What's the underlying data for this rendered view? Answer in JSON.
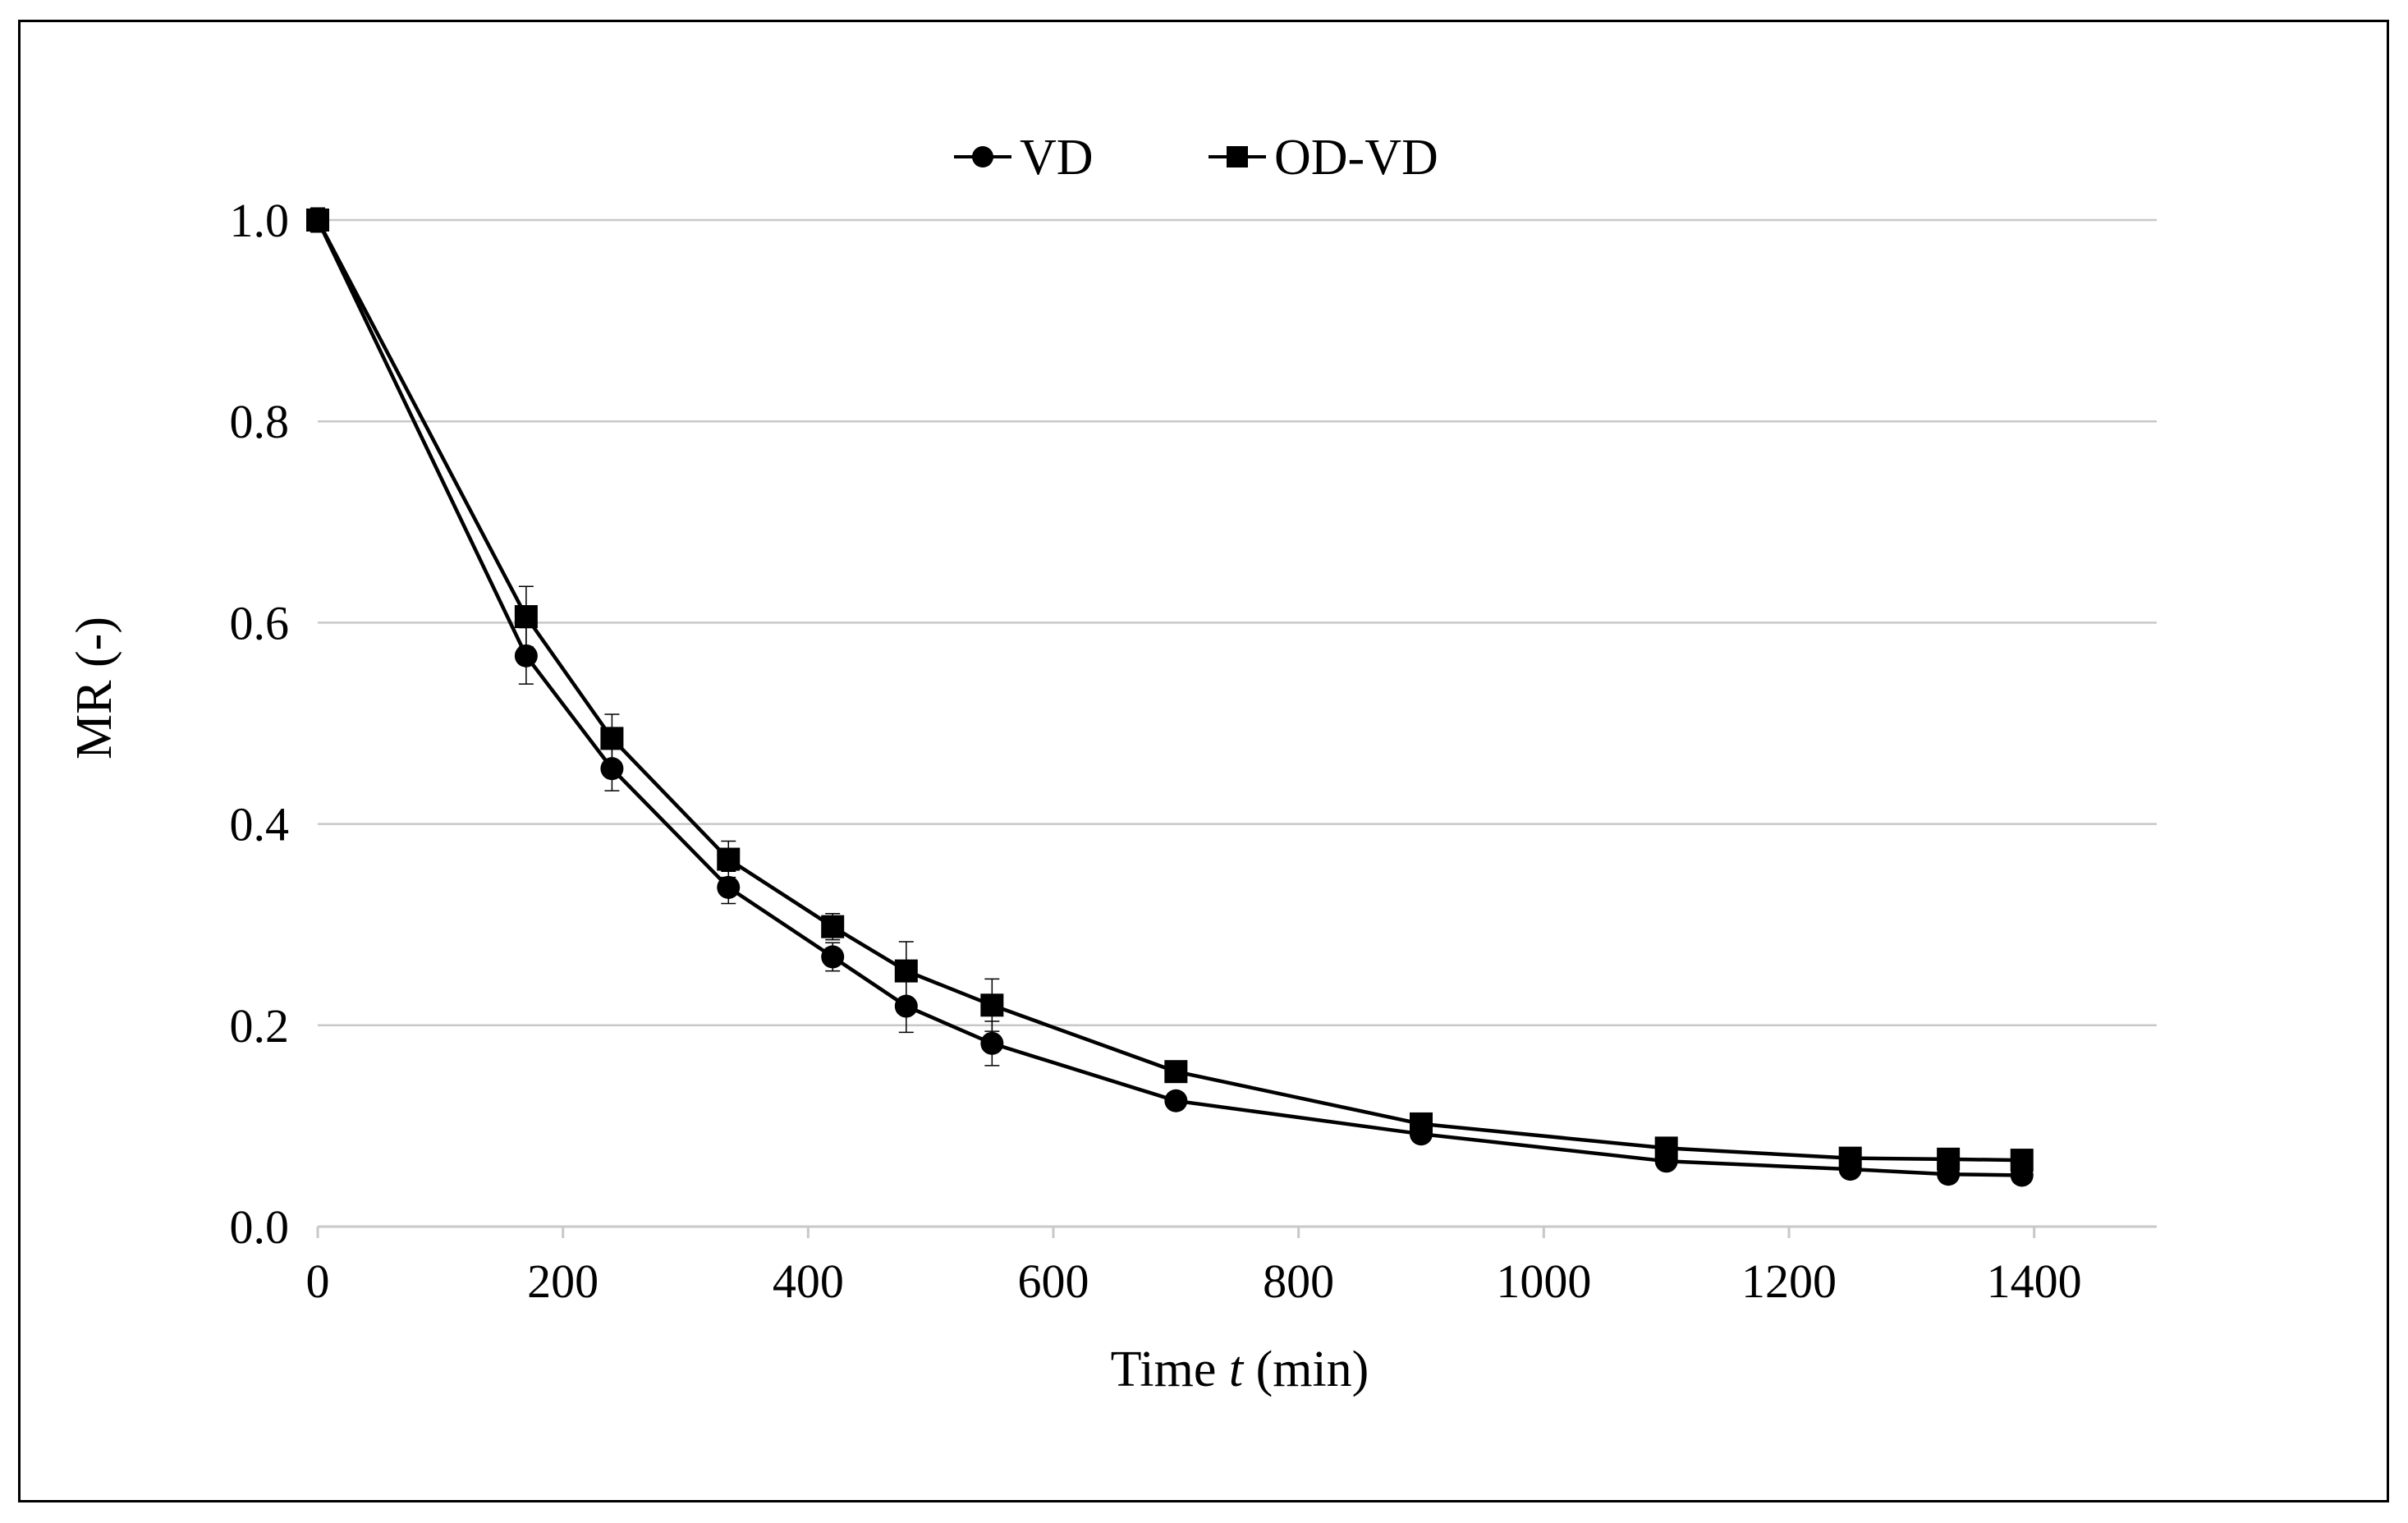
{
  "chart_data": {
    "type": "line",
    "title": "",
    "xlabel": {
      "prefix": "Time ",
      "italic": "t",
      "suffix": " (min)"
    },
    "ylabel": "MR (-)",
    "xlim": [
      0,
      1500
    ],
    "ylim": [
      0,
      1.0
    ],
    "xticks": [
      0,
      200,
      400,
      600,
      800,
      1000,
      1200,
      1400
    ],
    "yticks": [
      0.0,
      0.2,
      0.4,
      0.6,
      0.8,
      1.0
    ],
    "ytick_labels": [
      "0.0",
      "0.2",
      "0.4",
      "0.6",
      "0.8",
      "1.0"
    ],
    "grid": "horizontal",
    "legend_position": "top-center",
    "series": [
      {
        "name": "VD",
        "marker": "circle",
        "color": "#000000",
        "x": [
          0,
          170,
          240,
          335,
          420,
          480,
          550,
          700,
          900,
          1100,
          1250,
          1330,
          1390
        ],
        "y": [
          1.0,
          0.567,
          0.455,
          0.337,
          0.268,
          0.219,
          0.182,
          0.125,
          0.092,
          0.065,
          0.057,
          0.052,
          0.051
        ],
        "err": [
          0.012,
          0.028,
          0.022,
          0.016,
          0.014,
          0.026,
          0.022,
          0.008,
          0.006,
          0.005,
          0.004,
          0.004,
          0.004
        ]
      },
      {
        "name": "OD-VD",
        "marker": "square",
        "color": "#000000",
        "x": [
          0,
          170,
          240,
          335,
          420,
          480,
          550,
          700,
          900,
          1100,
          1250,
          1330,
          1390
        ],
        "y": [
          1.0,
          0.606,
          0.485,
          0.365,
          0.298,
          0.254,
          0.22,
          0.154,
          0.102,
          0.078,
          0.068,
          0.067,
          0.066
        ],
        "err": [
          0.01,
          0.03,
          0.024,
          0.018,
          0.013,
          0.029,
          0.026,
          0.008,
          0.006,
          0.005,
          0.004,
          0.004,
          0.004
        ]
      }
    ]
  }
}
